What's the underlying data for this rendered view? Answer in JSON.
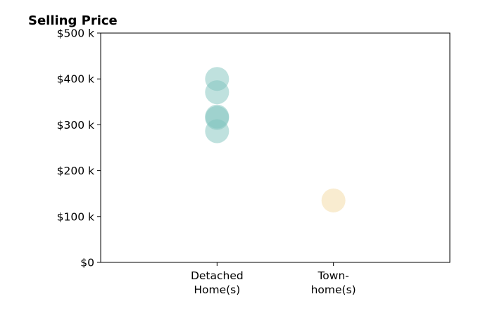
{
  "chart_data": {
    "type": "scatter",
    "title": "Selling Price",
    "xlabel": "",
    "ylabel": "",
    "categories": [
      {
        "lines": [
          "Detached",
          "Home(s)"
        ]
      },
      {
        "lines": [
          "Town-",
          "home(s)"
        ]
      }
    ],
    "y_ticks": [
      {
        "value": 0,
        "label": "$0"
      },
      {
        "value": 100000,
        "label": "$100 k"
      },
      {
        "value": 200000,
        "label": "$200 k"
      },
      {
        "value": 300000,
        "label": "$300 k"
      },
      {
        "value": 400000,
        "label": "$400 k"
      },
      {
        "value": 500000,
        "label": "$500 k"
      }
    ],
    "ylim": [
      0,
      500000
    ],
    "xlim": [
      -1,
      2
    ],
    "grid": false,
    "series": [
      {
        "category_index": 0,
        "color": "#7fc4bd",
        "opacity": 0.5,
        "values": [
          400000,
          371000,
          318000,
          315000,
          286000
        ]
      },
      {
        "category_index": 1,
        "color": "#f5dfb0",
        "opacity": 0.6,
        "values": [
          135000
        ]
      }
    ]
  }
}
